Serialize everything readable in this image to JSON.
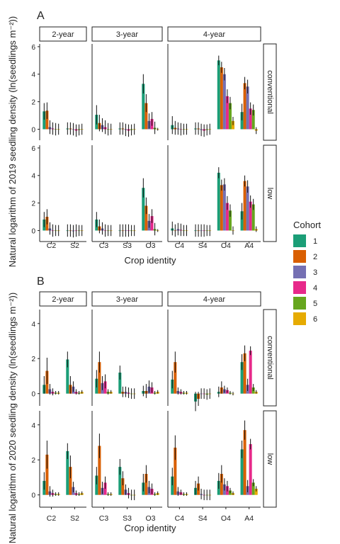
{
  "panel_labels": [
    "A",
    "B"
  ],
  "facet_columns": [
    "2-year",
    "3-year",
    "4-year"
  ],
  "facet_rows": [
    "conventional",
    "low"
  ],
  "x_axis_title": "Crop identity",
  "y_axis_titles": [
    "Natural logarithm of 2019 seedling density (ln(seedlings m⁻²))",
    "Natural logarithm of 2020 seedling density (ln(seedlings m⁻²))"
  ],
  "legend": {
    "title": "Cohort",
    "labels": [
      "1",
      "2",
      "3",
      "4",
      "5",
      "6"
    ]
  },
  "colors": [
    "#1b9e77",
    "#d95f02",
    "#7570b3",
    "#e7298a",
    "#66a61e",
    "#e6ab02"
  ],
  "chart_data": [
    {
      "type": "bar",
      "title": "A",
      "xlabel": "Crop identity",
      "ylabel": "Natural logarithm of 2019 seedling density (ln(seedlings m⁻²))",
      "ylim": [
        -0.8,
        6.2
      ],
      "yticks": [
        0,
        2,
        4,
        6
      ],
      "grid": false,
      "legend_position": "right",
      "series_names": [
        "1",
        "2",
        "3",
        "4",
        "5",
        "6"
      ],
      "facets": [
        {
          "row": "conventional",
          "col": "2-year",
          "categories": [
            {
              "crop": "C2",
              "values": [
                1.3,
                1.35,
                0.15,
                0.05,
                0.0,
                0.0
              ],
              "errors": [
                0.6,
                0.6,
                0.5,
                0.45,
                0.45,
                0.4
              ]
            },
            {
              "crop": "S2",
              "values": [
                0.05,
                0.05,
                0.0,
                -0.1,
                -0.05,
                0.0
              ],
              "errors": [
                0.45,
                0.45,
                0.45,
                0.45,
                0.4,
                0.4
              ]
            }
          ]
        },
        {
          "row": "conventional",
          "col": "3-year",
          "categories": [
            {
              "crop": "C3",
              "values": [
                1.05,
                0.45,
                0.3,
                0.15,
                0.0,
                0.0
              ],
              "errors": [
                0.7,
                0.6,
                0.5,
                0.5,
                0.45,
                0.4
              ]
            },
            {
              "crop": "S3",
              "values": [
                0.05,
                0.05,
                -0.05,
                -0.1,
                -0.05,
                0.0
              ],
              "errors": [
                0.45,
                0.45,
                0.45,
                0.45,
                0.4,
                0.4
              ]
            },
            {
              "crop": "O3",
              "values": [
                3.3,
                1.9,
                0.6,
                0.75,
                0.1,
                0.0
              ],
              "errors": [
                0.7,
                0.65,
                0.55,
                0.5,
                0.45,
                0.1
              ]
            }
          ]
        },
        {
          "row": "conventional",
          "col": "4-year",
          "categories": [
            {
              "crop": "C4",
              "values": [
                0.3,
                0.1,
                0.05,
                0.0,
                0.0,
                0.0
              ],
              "errors": [
                0.65,
                0.5,
                0.45,
                0.45,
                0.4,
                0.4
              ]
            },
            {
              "crop": "S4",
              "values": [
                0.05,
                0.05,
                -0.05,
                -0.1,
                -0.05,
                0.0
              ],
              "errors": [
                0.45,
                0.45,
                0.45,
                0.45,
                0.4,
                0.4
              ]
            },
            {
              "crop": "O4",
              "values": [
                5.0,
                4.5,
                4.0,
                2.4,
                1.9,
                0.6
              ],
              "errors": [
                0.35,
                0.4,
                0.45,
                0.5,
                0.45,
                0.3
              ]
            },
            {
              "crop": "A4",
              "values": [
                1.25,
                3.35,
                3.1,
                1.5,
                1.4,
                -0.1
              ],
              "errors": [
                0.6,
                0.45,
                0.5,
                0.45,
                0.4,
                0.25
              ]
            }
          ]
        },
        {
          "row": "low",
          "col": "2-year",
          "categories": [
            {
              "crop": "C2",
              "values": [
                0.8,
                1.0,
                0.15,
                0.0,
                0.0,
                0.0
              ],
              "errors": [
                0.55,
                0.55,
                0.45,
                0.45,
                0.4,
                0.4
              ]
            },
            {
              "crop": "S2",
              "values": [
                0.0,
                0.0,
                -0.05,
                0.0,
                0.0,
                0.0
              ],
              "errors": [
                0.45,
                0.45,
                0.45,
                0.45,
                0.4,
                0.4
              ]
            }
          ]
        },
        {
          "row": "low",
          "col": "3-year",
          "categories": [
            {
              "crop": "C3",
              "values": [
                0.8,
                0.3,
                0.15,
                0.0,
                0.0,
                0.0
              ],
              "errors": [
                0.55,
                0.5,
                0.45,
                0.45,
                0.4,
                0.4
              ]
            },
            {
              "crop": "S3",
              "values": [
                0.0,
                0.0,
                0.0,
                0.0,
                0.0,
                0.0
              ],
              "errors": [
                0.45,
                0.45,
                0.45,
                0.45,
                0.4,
                0.4
              ]
            },
            {
              "crop": "O3",
              "values": [
                3.1,
                1.8,
                0.7,
                1.05,
                0.1,
                0.0
              ],
              "errors": [
                0.7,
                0.6,
                0.5,
                0.5,
                0.45,
                0.1
              ]
            }
          ]
        },
        {
          "row": "low",
          "col": "4-year",
          "categories": [
            {
              "crop": "C4",
              "values": [
                0.15,
                0.0,
                0.1,
                0.05,
                0.0,
                0.0
              ],
              "errors": [
                0.5,
                0.45,
                0.45,
                0.45,
                0.4,
                0.4
              ]
            },
            {
              "crop": "S4",
              "values": [
                0.0,
                0.0,
                0.0,
                0.0,
                0.0,
                0.0
              ],
              "errors": [
                0.45,
                0.45,
                0.45,
                0.45,
                0.4,
                0.4
              ]
            },
            {
              "crop": "O4",
              "values": [
                4.2,
                3.3,
                3.35,
                2.0,
                1.45,
                0.0
              ],
              "errors": [
                0.4,
                0.4,
                0.45,
                0.5,
                0.45,
                0.3
              ]
            },
            {
              "crop": "A4",
              "values": [
                1.4,
                3.6,
                3.2,
                2.1,
                1.9,
                0.1
              ],
              "errors": [
                0.6,
                0.4,
                0.45,
                0.45,
                0.4,
                0.2
              ]
            }
          ]
        }
      ]
    },
    {
      "type": "bar",
      "title": "B",
      "xlabel": "Crop identity",
      "ylabel": "Natural logarithm of 2020 seedling density (ln(seedlings m⁻²))",
      "ylim": [
        -0.7,
        4.8
      ],
      "yticks": [
        0,
        2,
        4
      ],
      "grid": false,
      "legend_position": "right",
      "series_names": [
        "1",
        "2",
        "3",
        "4",
        "5",
        "6"
      ],
      "facets": [
        {
          "row": "conventional",
          "col": "2-year",
          "categories": [
            {
              "crop": "C2",
              "values": [
                0.5,
                1.3,
                0.25,
                0.1,
                0.05,
                0.05
              ],
              "errors": [
                0.5,
                0.75,
                0.3,
                0.2,
                0.1,
                0.1
              ]
            },
            {
              "crop": "S2",
              "values": [
                1.95,
                0.5,
                0.4,
                0.1,
                0.05,
                0.1
              ],
              "errors": [
                0.45,
                0.5,
                0.3,
                0.15,
                0.1,
                0.1
              ]
            }
          ]
        },
        {
          "row": "conventional",
          "col": "3-year",
          "categories": [
            {
              "crop": "C3",
              "values": [
                0.85,
                1.8,
                0.6,
                0.7,
                0.1,
                0.1
              ],
              "errors": [
                0.5,
                0.6,
                0.4,
                0.4,
                0.15,
                0.1
              ]
            },
            {
              "crop": "S3",
              "values": [
                1.2,
                0.1,
                0.1,
                0.05,
                0.0,
                0.0
              ],
              "errors": [
                0.4,
                0.3,
                0.3,
                0.3,
                0.3,
                0.3
              ]
            },
            {
              "crop": "O3",
              "values": [
                0.15,
                0.15,
                0.4,
                0.35,
                0.05,
                0.1
              ],
              "errors": [
                0.3,
                0.4,
                0.35,
                0.3,
                0.1,
                0.1
              ]
            }
          ]
        },
        {
          "row": "conventional",
          "col": "4-year",
          "categories": [
            {
              "crop": "C4",
              "values": [
                0.8,
                1.8,
                0.15,
                0.1,
                0.05,
                0.05
              ],
              "errors": [
                0.5,
                0.6,
                0.2,
                0.15,
                0.1,
                0.1
              ]
            },
            {
              "crop": "S4",
              "values": [
                -0.45,
                -0.3,
                0.0,
                0.0,
                -0.05,
                0.0
              ],
              "errors": [
                0.55,
                0.4,
                0.3,
                0.3,
                0.3,
                0.3
              ]
            },
            {
              "crop": "O4",
              "values": [
                0.1,
                0.35,
                0.25,
                0.2,
                0.05,
                0.0
              ],
              "errors": [
                0.3,
                0.35,
                0.2,
                0.15,
                0.1,
                0.1
              ]
            },
            {
              "crop": "A4",
              "values": [
                1.8,
                2.3,
                0.5,
                2.45,
                0.35,
                0.1
              ],
              "errors": [
                0.45,
                0.45,
                0.35,
                0.25,
                0.2,
                0.1
              ]
            }
          ]
        },
        {
          "row": "low",
          "col": "2-year",
          "categories": [
            {
              "crop": "C2",
              "values": [
                0.8,
                2.3,
                0.2,
                0.1,
                0.05,
                0.05
              ],
              "errors": [
                0.5,
                0.8,
                0.3,
                0.2,
                0.1,
                0.1
              ]
            },
            {
              "crop": "S2",
              "values": [
                2.5,
                1.6,
                0.45,
                0.1,
                0.05,
                0.1
              ],
              "errors": [
                0.45,
                0.65,
                0.3,
                0.15,
                0.1,
                0.1
              ]
            }
          ]
        },
        {
          "row": "low",
          "col": "3-year",
          "categories": [
            {
              "crop": "C3",
              "values": [
                1.1,
                2.8,
                0.4,
                0.7,
                0.05,
                0.05
              ],
              "errors": [
                0.5,
                0.7,
                0.35,
                0.35,
                0.1,
                0.1
              ]
            },
            {
              "crop": "S3",
              "values": [
                1.6,
                0.95,
                0.3,
                0.1,
                0.0,
                0.0
              ],
              "errors": [
                0.45,
                0.4,
                0.3,
                0.3,
                0.3,
                0.3
              ]
            },
            {
              "crop": "O3",
              "values": [
                0.7,
                1.2,
                0.45,
                0.35,
                0.05,
                0.1
              ],
              "errors": [
                0.5,
                0.5,
                0.35,
                0.3,
                0.1,
                0.1
              ]
            }
          ]
        },
        {
          "row": "low",
          "col": "4-year",
          "categories": [
            {
              "crop": "C4",
              "values": [
                1.05,
                2.7,
                0.2,
                0.15,
                0.05,
                0.05
              ],
              "errors": [
                0.5,
                0.7,
                0.25,
                0.15,
                0.1,
                0.1
              ]
            },
            {
              "crop": "S4",
              "values": [
                0.4,
                0.65,
                0.05,
                0.0,
                0.0,
                0.0
              ],
              "errors": [
                0.4,
                0.4,
                0.3,
                0.3,
                0.3,
                0.3
              ]
            },
            {
              "crop": "O4",
              "values": [
                0.8,
                1.2,
                0.6,
                0.5,
                0.25,
                0.1
              ],
              "errors": [
                0.45,
                0.5,
                0.35,
                0.3,
                0.15,
                0.1
              ]
            },
            {
              "crop": "A4",
              "values": [
                2.6,
                3.7,
                0.5,
                2.9,
                0.7,
                0.35
              ],
              "errors": [
                0.5,
                0.55,
                0.35,
                0.3,
                0.2,
                0.15
              ]
            }
          ]
        }
      ]
    }
  ]
}
